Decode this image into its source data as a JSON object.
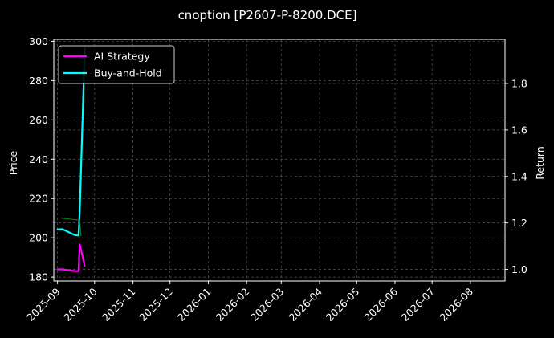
{
  "chart_data": {
    "type": "line",
    "title": "cnoption [P2607-P-8200.DCE]",
    "ylabel_left": "Price",
    "ylabel_right": "Return",
    "x_ticks": [
      "2025-09",
      "2025-10",
      "2025-11",
      "2025-12",
      "2026-01",
      "2026-02",
      "2026-03",
      "2026-04",
      "2026-05",
      "2026-06",
      "2026-07",
      "2026-08"
    ],
    "xlim": [
      "2025-08-29",
      "2026-08-29"
    ],
    "ylim_left": [
      178,
      301
    ],
    "ylim_right": [
      0.95,
      1.99
    ],
    "yticks_left": [
      180,
      200,
      220,
      240,
      260,
      280,
      300
    ],
    "yticks_right": [
      1.0,
      1.2,
      1.4,
      1.6,
      1.8
    ],
    "grid": true,
    "legend_position": "top-left",
    "background": "#000000",
    "series": [
      {
        "name": "AI Strategy",
        "axis": "right",
        "color": "#ff00ff",
        "points": [
          {
            "x": "2025-09-01",
            "y": 1.0
          },
          {
            "x": "2025-09-03",
            "y": 1.0
          },
          {
            "x": "2025-09-05",
            "y": 1.0
          },
          {
            "x": "2025-09-15",
            "y": 0.993
          },
          {
            "x": "2025-09-18",
            "y": 0.992
          },
          {
            "x": "2025-09-19",
            "y": 1.108
          },
          {
            "x": "2025-09-23",
            "y": 1.015
          }
        ]
      },
      {
        "name": "Buy-and-Hold",
        "axis": "right",
        "color": "#00ffff",
        "points": [
          {
            "x": "2025-09-01",
            "y": 1.172
          },
          {
            "x": "2025-09-05",
            "y": 1.173
          },
          {
            "x": "2025-09-15",
            "y": 1.148
          },
          {
            "x": "2025-09-18",
            "y": 1.146
          },
          {
            "x": "2025-09-19",
            "y": 1.25
          },
          {
            "x": "2025-09-23",
            "y": 1.95
          }
        ]
      },
      {
        "name": "",
        "axis": "left",
        "color": "#1a7f1a",
        "points": [
          {
            "x": "2025-09-04",
            "y": 210
          },
          {
            "x": "2025-09-19",
            "y": 209
          },
          {
            "x": "2025-09-20",
            "y": 201
          }
        ]
      }
    ]
  }
}
